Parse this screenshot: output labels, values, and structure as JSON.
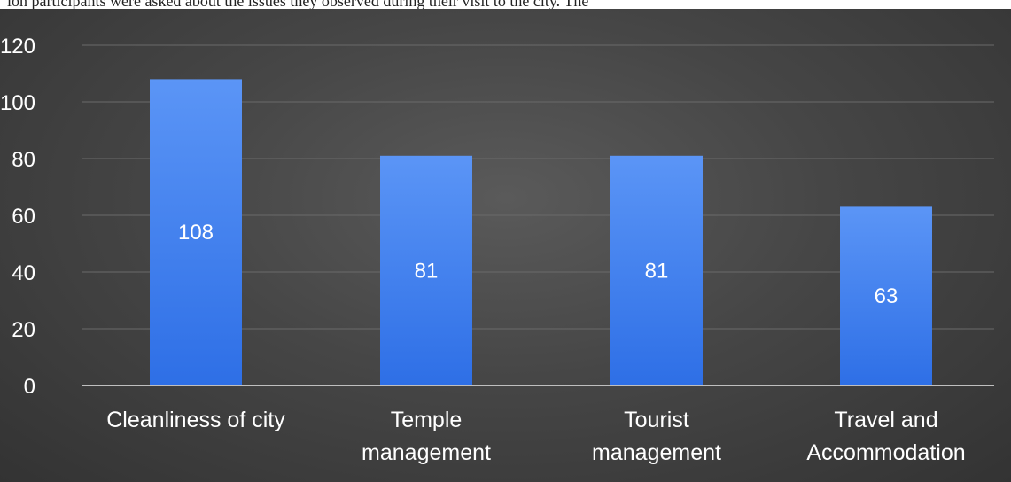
{
  "top_text": "ion participants were asked about the issues they observed during their visit to the city. The",
  "colors": {
    "background": "#444444",
    "bar_top": "#5b95f6",
    "bar_bottom": "#2e6fe6",
    "grid": "#6a6a6a",
    "axis_text": "#ffffff"
  },
  "chart_data": {
    "type": "bar",
    "title": "",
    "xlabel": "",
    "ylabel": "",
    "ylim": [
      0,
      120
    ],
    "yticks": [
      0,
      20,
      40,
      60,
      80,
      100,
      120
    ],
    "categories": [
      [
        "Cleanliness of city"
      ],
      [
        "Temple",
        "management"
      ],
      [
        "Tourist",
        "management"
      ],
      [
        "Travel and",
        "Accommodation"
      ]
    ],
    "values": [
      108,
      81,
      81,
      63
    ],
    "data_labels": [
      "108",
      "81",
      "81",
      "63"
    ],
    "grid": true,
    "legend": false
  }
}
